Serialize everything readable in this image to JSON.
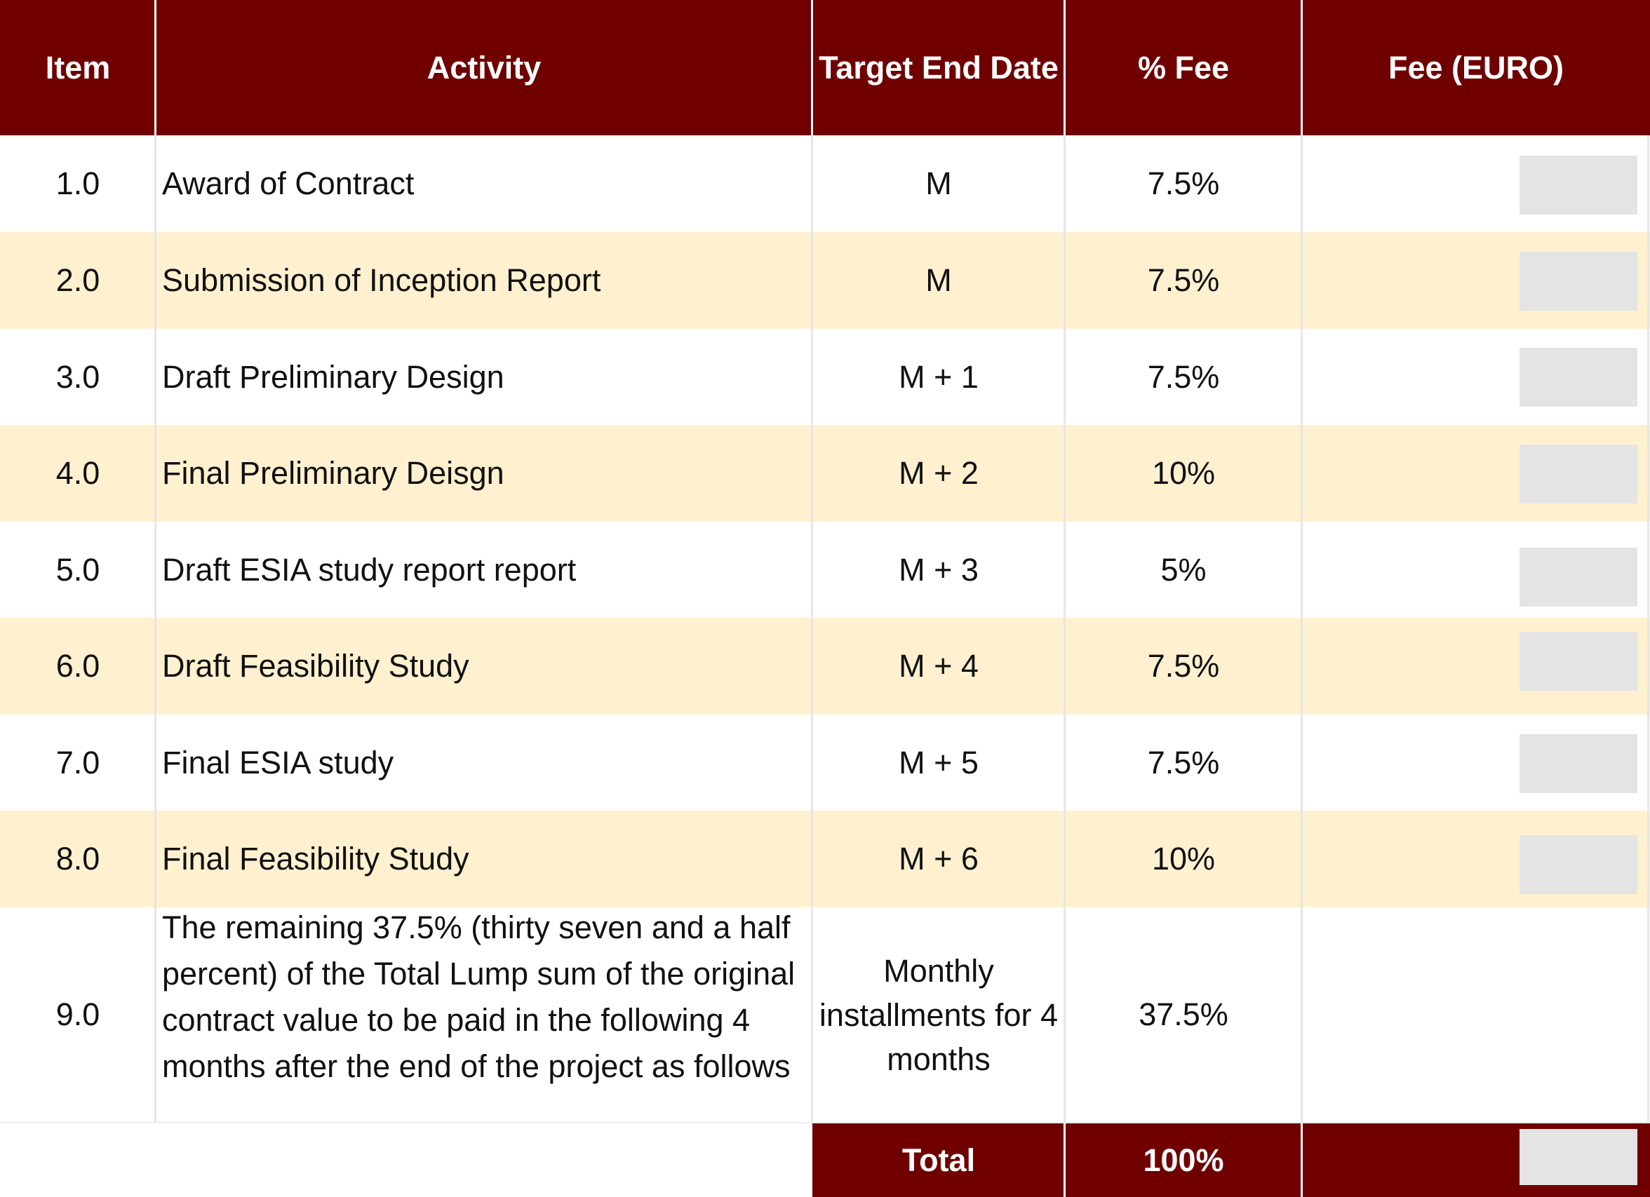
{
  "header": {
    "item": "Item",
    "activity": "Activity",
    "target_end_date": "Target End Date",
    "pct_fee": "% Fee",
    "fee_euro": "Fee (EURO)"
  },
  "rows": [
    {
      "item": "1.0",
      "activity": "Award of Contract",
      "target": "M",
      "pct": "7.5%"
    },
    {
      "item": "2.0",
      "activity": "Submission of Inception Report",
      "target": "M",
      "pct": "7.5%"
    },
    {
      "item": "3.0",
      "activity": "Draft Preliminary Design",
      "target": "M + 1",
      "pct": "7.5%"
    },
    {
      "item": "4.0",
      "activity": "Final Preliminary Deisgn",
      "target": "M + 2",
      "pct": "10%"
    },
    {
      "item": "5.0",
      "activity": "Draft ESIA study report report",
      "target": "M + 3",
      "pct": "5%"
    },
    {
      "item": "6.0",
      "activity": "Draft Feasibility Study",
      "target": "M + 4",
      "pct": "7.5%"
    },
    {
      "item": "7.0",
      "activity": "Final ESIA study",
      "target": "M + 5",
      "pct": "7.5%"
    },
    {
      "item": "8.0",
      "activity": "Final Feasibility Study",
      "target": "M + 6",
      "pct": "10%"
    },
    {
      "item": "9.0",
      "activity": "The remaining 37.5% (thirty seven and a half percent) of the Total Lump sum of the original contract value to be paid in the following 4 months after the end of the project as follows",
      "target": "Monthly installments for 4 months",
      "pct": "37.5%"
    }
  ],
  "total": {
    "label": "Total",
    "pct": "100%"
  },
  "colors": {
    "header_bg": "#700000",
    "band_bg": "#fff1cf",
    "redaction": "#e4e4e4"
  }
}
